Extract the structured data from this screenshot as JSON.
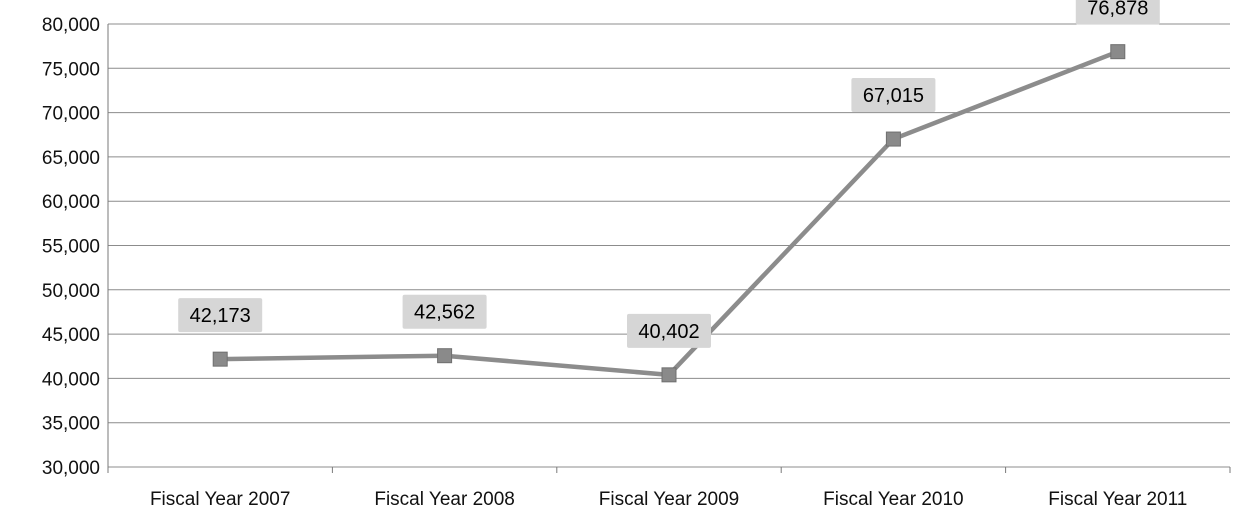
{
  "chart_data": {
    "type": "line",
    "categories": [
      "Fiscal Year 2007",
      "Fiscal Year 2008",
      "Fiscal Year 2009",
      "Fiscal Year 2010",
      "Fiscal Year 2011"
    ],
    "series": [
      {
        "values": [
          42173,
          42562,
          40402,
          67015,
          76878
        ]
      }
    ],
    "data_labels": [
      "42,173",
      "42,562",
      "40,402",
      "67,015",
      "76,878"
    ],
    "y_tick_labels": [
      "30,000",
      "35,000",
      "40,000",
      "45,000",
      "50,000",
      "55,000",
      "60,000",
      "65,000",
      "70,000",
      "75,000",
      "80,000"
    ],
    "ylim": [
      30000,
      80000
    ],
    "y_step": 5000,
    "grid": true,
    "legend": "none",
    "colors": {
      "line": "#8c8c8c",
      "marker": "#8a8a8a",
      "label_bg": "#d6d6d6",
      "grid": "#8c8c8c"
    }
  }
}
